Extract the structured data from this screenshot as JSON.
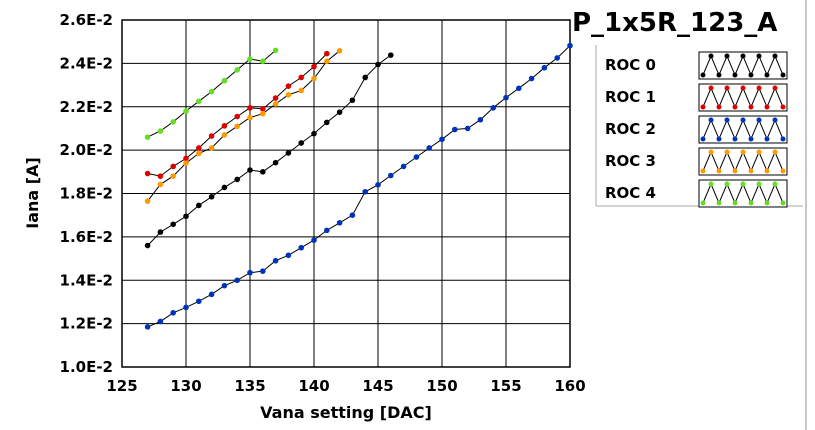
{
  "chart_data": {
    "type": "line",
    "title": "P_1x5R_123_A",
    "xlabel": "Vana setting [DAC]",
    "ylabel": "Iana [A]",
    "xlim": [
      125,
      160
    ],
    "ylim": [
      0.01,
      0.026
    ],
    "x_ticks": [
      125,
      130,
      135,
      140,
      145,
      150,
      155,
      160
    ],
    "x_tick_labels": [
      "125",
      "130",
      "135",
      "140",
      "145",
      "150",
      "155",
      "160"
    ],
    "y_ticks": [
      0.01,
      0.012,
      0.014,
      0.016,
      0.018,
      0.02,
      0.022,
      0.024,
      0.026
    ],
    "y_tick_labels": [
      "1.0E-2",
      "1.2E-2",
      "1.4E-2",
      "1.6E-2",
      "1.8E-2",
      "2.0E-2",
      "2.2E-2",
      "2.4E-2",
      "2.6E-2"
    ],
    "grid": true,
    "legend_position": "top-right",
    "series": [
      {
        "name": "ROC 0",
        "color": "#000000",
        "x": [
          127,
          128,
          129,
          130,
          131,
          132,
          133,
          134,
          135,
          136,
          137,
          138,
          139,
          140,
          141,
          142,
          143,
          144,
          145,
          146
        ],
        "y": [
          0.0156,
          0.01622,
          0.01658,
          0.01695,
          0.01745,
          0.01785,
          0.01828,
          0.01865,
          0.01908,
          0.019,
          0.01942,
          0.01987,
          0.02033,
          0.02076,
          0.02128,
          0.02175,
          0.0223,
          0.02335,
          0.02395,
          0.02438
        ]
      },
      {
        "name": "ROC 1",
        "color": "#dd0000",
        "x": [
          127,
          128,
          129,
          130,
          131,
          132,
          133,
          134,
          135,
          136,
          137,
          138,
          139,
          140,
          141
        ],
        "y": [
          0.01892,
          0.0188,
          0.01925,
          0.01962,
          0.0201,
          0.02065,
          0.02112,
          0.02155,
          0.02195,
          0.0219,
          0.0224,
          0.02295,
          0.02335,
          0.02385,
          0.02445
        ]
      },
      {
        "name": "ROC 2",
        "color": "#0033bb",
        "x": [
          127,
          128,
          129,
          130,
          131,
          132,
          133,
          134,
          135,
          136,
          137,
          138,
          139,
          140,
          141,
          142,
          143,
          144,
          145,
          146,
          147,
          148,
          149,
          150,
          151,
          152,
          153,
          154,
          155,
          156,
          157,
          158,
          159,
          160
        ],
        "y": [
          0.01185,
          0.0121,
          0.0125,
          0.01275,
          0.01303,
          0.01335,
          0.01375,
          0.014,
          0.01435,
          0.01442,
          0.0149,
          0.01515,
          0.0155,
          0.01585,
          0.0163,
          0.01665,
          0.017,
          0.01808,
          0.0184,
          0.01883,
          0.01925,
          0.01968,
          0.0201,
          0.0205,
          0.02095,
          0.021,
          0.0214,
          0.02195,
          0.02242,
          0.02285,
          0.0233,
          0.0238,
          0.02425,
          0.02482
        ]
      },
      {
        "name": "ROC 3",
        "color": "#ff9900",
        "x": [
          127,
          128,
          129,
          130,
          131,
          132,
          133,
          134,
          135,
          136,
          137,
          138,
          139,
          140,
          141,
          142
        ],
        "y": [
          0.01765,
          0.01842,
          0.0188,
          0.0194,
          0.01985,
          0.0201,
          0.0207,
          0.0211,
          0.0215,
          0.02168,
          0.02213,
          0.02255,
          0.02275,
          0.0233,
          0.0241,
          0.02458
        ]
      },
      {
        "name": "ROC 4",
        "color": "#66dd22",
        "x": [
          127,
          128,
          129,
          130,
          131,
          132,
          133,
          134,
          135,
          136,
          137
        ],
        "y": [
          0.0206,
          0.02088,
          0.0213,
          0.0218,
          0.02225,
          0.0227,
          0.0232,
          0.0237,
          0.0242,
          0.0241,
          0.0246
        ]
      }
    ]
  }
}
